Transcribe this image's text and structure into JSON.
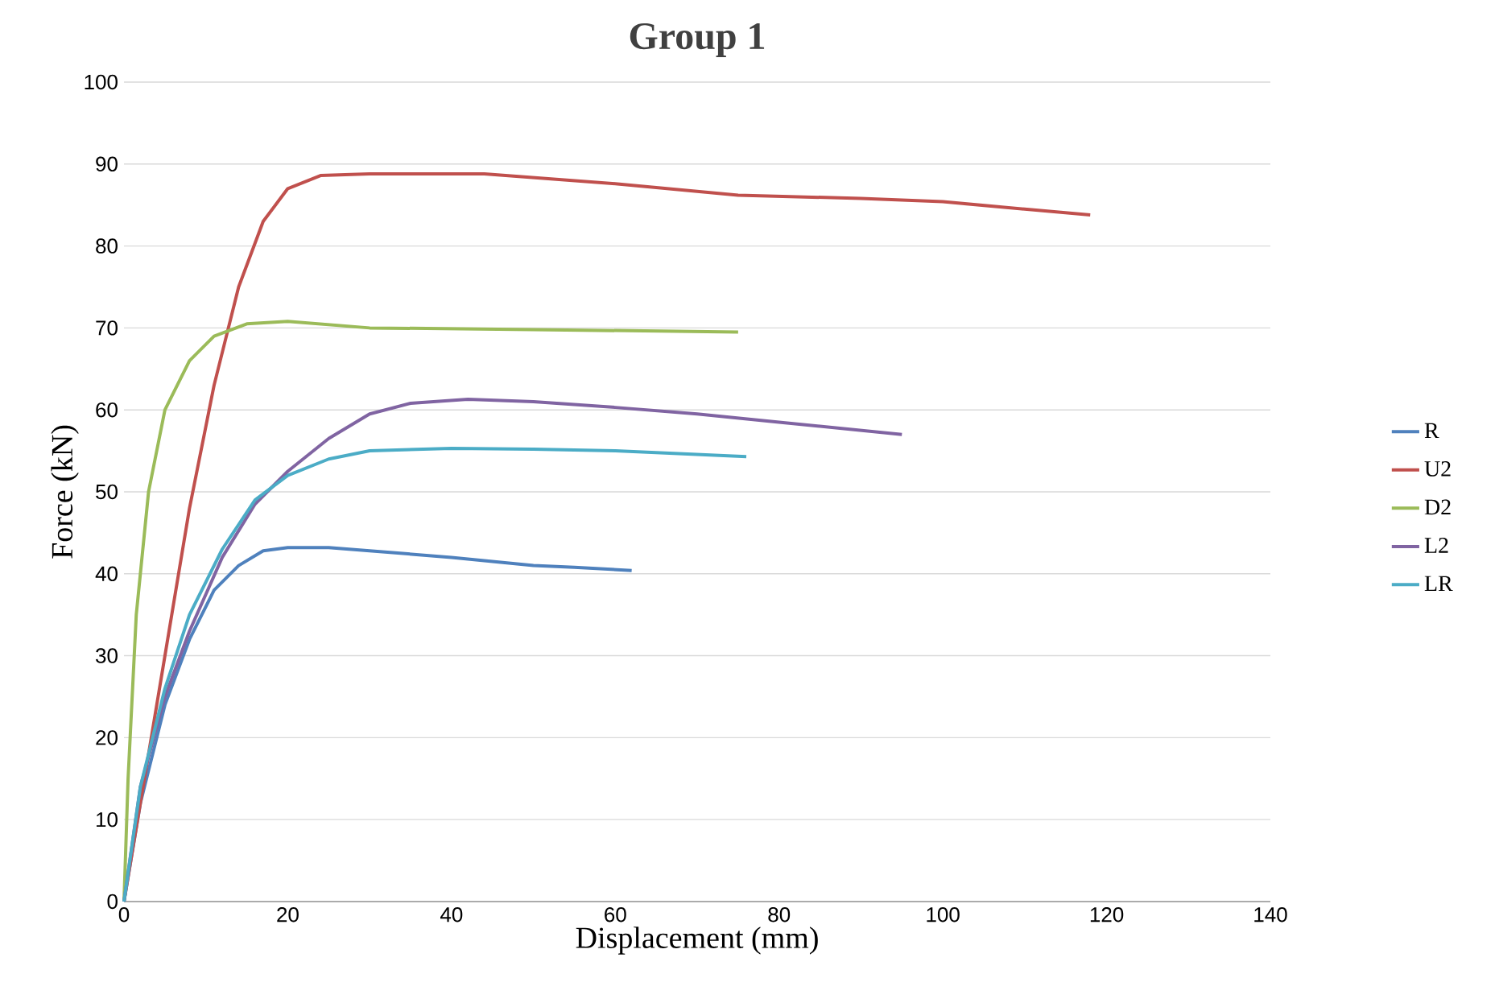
{
  "chart_data": {
    "type": "line",
    "title": "Group 1",
    "xlabel": "Displacement (mm)",
    "ylabel": "Force (kN)",
    "xlim": [
      0,
      140
    ],
    "xticks": [
      0,
      20,
      40,
      60,
      80,
      100,
      120,
      140
    ],
    "ylim": [
      0,
      100
    ],
    "yticks": [
      0,
      10,
      20,
      30,
      40,
      50,
      60,
      70,
      80,
      90,
      100
    ],
    "grid": "y",
    "legend": "right",
    "marker": "none",
    "line_style": "solid",
    "series": [
      {
        "name": "R",
        "color": "#4f81bd",
        "x": [
          0,
          2,
          5,
          8,
          11,
          14,
          17,
          20,
          25,
          30,
          40,
          50,
          55,
          62
        ],
        "values": [
          0,
          12,
          24,
          32,
          38,
          41,
          42.8,
          43.2,
          43.2,
          42.8,
          42,
          41,
          40.8,
          40.4
        ]
      },
      {
        "name": "U2",
        "color": "#c0504d",
        "x": [
          0,
          2,
          5,
          8,
          11,
          14,
          17,
          20,
          24,
          30,
          44,
          60,
          75,
          90,
          100,
          110,
          118
        ],
        "values": [
          0,
          12,
          30,
          48,
          63,
          75,
          83,
          87,
          88.6,
          88.8,
          88.8,
          87.6,
          86.2,
          85.8,
          85.4,
          84.5,
          83.8
        ]
      },
      {
        "name": "D2",
        "color": "#9bbb59",
        "x": [
          0,
          0.5,
          1.5,
          3,
          5,
          8,
          11,
          15,
          20,
          30,
          50,
          75
        ],
        "values": [
          0,
          15,
          35,
          50,
          60,
          66,
          69,
          70.5,
          70.8,
          70,
          69.8,
          69.5
        ]
      },
      {
        "name": "L2",
        "color": "#8064a2",
        "x": [
          0,
          2,
          5,
          8,
          12,
          16,
          20,
          25,
          30,
          35,
          42,
          50,
          60,
          70,
          80,
          95
        ],
        "values": [
          0,
          14,
          25,
          33,
          42,
          48.5,
          52.5,
          56.5,
          59.5,
          60.8,
          61.3,
          61,
          60.3,
          59.5,
          58.5,
          57
        ]
      },
      {
        "name": "LR",
        "color": "#4bacc6",
        "x": [
          0,
          2,
          5,
          8,
          12,
          16,
          20,
          25,
          30,
          40,
          50,
          60,
          76
        ],
        "values": [
          0,
          14,
          26,
          35,
          43,
          49,
          52,
          54,
          55,
          55.3,
          55.2,
          55,
          54.3
        ]
      }
    ]
  }
}
